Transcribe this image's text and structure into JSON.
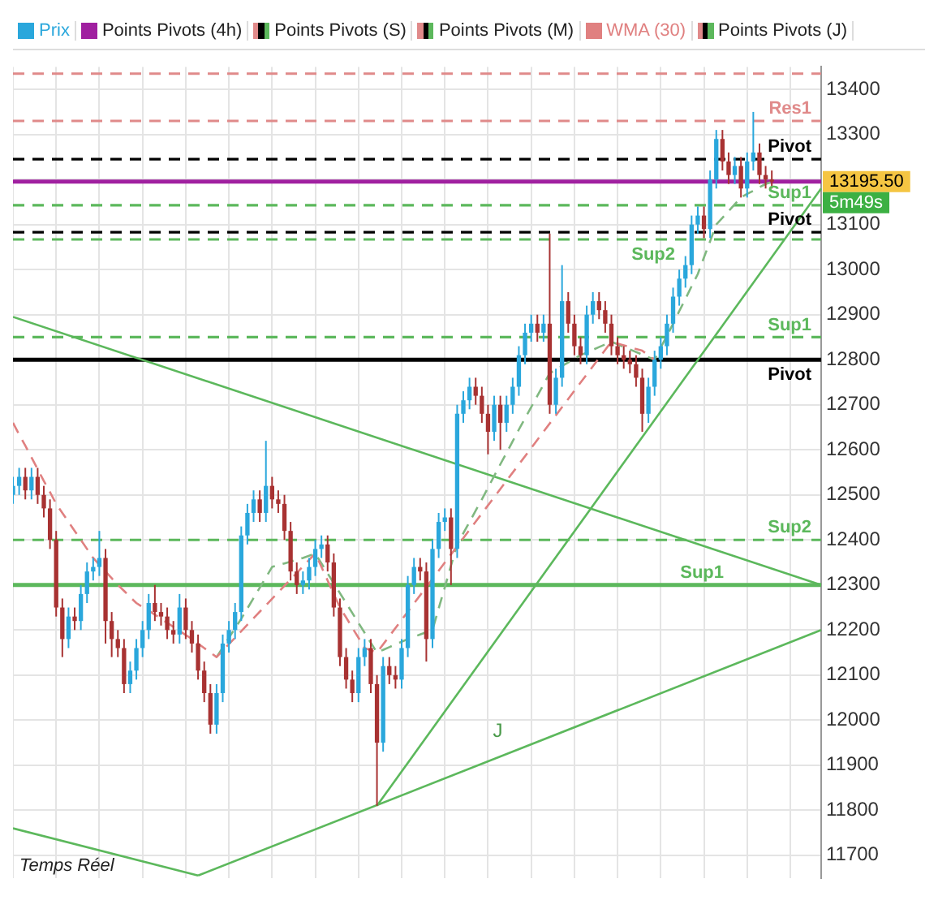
{
  "chart_data": {
    "type": "candlestick",
    "legend": "top left",
    "grid": true,
    "tick_labels": "y",
    "ylim": [
      11650,
      13450
    ],
    "yticks": [
      11700,
      11800,
      11900,
      12000,
      12100,
      12200,
      12300,
      12400,
      12500,
      12600,
      12700,
      12800,
      12900,
      13000,
      13100,
      {
        "value": 13200,
        "label": null
      },
      13300,
      13400
    ],
    "categories": [
      null,
      null,
      null,
      null,
      null,
      null,
      null,
      null,
      null,
      null,
      null,
      null,
      null,
      null,
      null,
      null,
      null,
      null,
      null,
      null,
      null,
      null,
      null,
      null,
      null,
      null,
      null,
      null,
      null,
      null,
      null,
      null,
      null,
      null,
      null,
      null,
      null,
      null,
      null,
      null,
      null,
      null,
      null,
      null,
      null,
      null,
      null,
      null,
      null,
      null,
      null,
      null,
      null,
      null,
      null,
      null,
      null,
      null,
      null,
      null,
      null,
      null,
      null,
      null,
      null,
      null,
      null,
      null,
      null,
      null,
      null,
      null,
      null,
      null,
      null,
      null,
      null,
      null,
      null,
      null,
      null,
      null,
      null,
      null,
      null,
      null,
      null,
      null,
      null,
      null,
      null,
      null,
      null,
      null,
      null,
      null,
      null,
      null,
      null,
      null,
      null,
      null,
      null,
      null,
      null,
      null,
      null,
      null,
      null,
      null,
      null,
      null,
      null,
      null,
      null,
      null,
      null,
      null,
      null,
      null,
      null,
      null,
      null,
      null,
      null,
      null,
      null,
      null,
      null,
      null,
      null,
      null
    ],
    "series": [
      {
        "name": "Prix",
        "ohlc": [
          [
            12500,
            12540,
            12480,
            12520
          ],
          [
            12520,
            12560,
            12500,
            12540
          ],
          [
            12540,
            12560,
            12490,
            12510
          ],
          [
            12510,
            12560,
            12490,
            12540
          ],
          [
            12540,
            12560,
            12480,
            12500
          ],
          [
            12500,
            12520,
            12450,
            12470
          ],
          [
            12470,
            12490,
            12380,
            12400
          ],
          [
            12400,
            12420,
            12230,
            12250
          ],
          [
            12250,
            12270,
            12140,
            12180
          ],
          [
            12180,
            12250,
            12160,
            12230
          ],
          [
            12230,
            12250,
            12200,
            12220
          ],
          [
            12220,
            12300,
            12200,
            12280
          ],
          [
            12280,
            12350,
            12260,
            12330
          ],
          [
            12330,
            12360,
            12310,
            12340
          ],
          [
            12340,
            12420,
            12320,
            12360
          ],
          [
            12360,
            12380,
            12170,
            12220
          ],
          [
            12220,
            12240,
            12140,
            12180
          ],
          [
            12180,
            12200,
            12140,
            12160
          ],
          [
            12160,
            12180,
            12060,
            12080
          ],
          [
            12080,
            12130,
            12060,
            12110
          ],
          [
            12110,
            12180,
            12090,
            12160
          ],
          [
            12160,
            12220,
            12140,
            12200
          ],
          [
            12200,
            12280,
            12180,
            12260
          ],
          [
            12260,
            12300,
            12220,
            12240
          ],
          [
            12240,
            12260,
            12210,
            12230
          ],
          [
            12230,
            12250,
            12180,
            12200
          ],
          [
            12200,
            12220,
            12170,
            12190
          ],
          [
            12190,
            12280,
            12170,
            12250
          ],
          [
            12250,
            12270,
            12180,
            12200
          ],
          [
            12200,
            12220,
            12150,
            12170
          ],
          [
            12170,
            12190,
            12090,
            12110
          ],
          [
            12110,
            12130,
            12040,
            12060
          ],
          [
            12060,
            12080,
            11970,
            11990
          ],
          [
            11990,
            12080,
            11970,
            12060
          ],
          [
            12060,
            12190,
            12040,
            12170
          ],
          [
            12170,
            12220,
            12150,
            12200
          ],
          [
            12200,
            12260,
            12180,
            12240
          ],
          [
            12240,
            12430,
            12220,
            12410
          ],
          [
            12410,
            12480,
            12390,
            12460
          ],
          [
            12460,
            12510,
            12440,
            12490
          ],
          [
            12490,
            12510,
            12440,
            12460
          ],
          [
            12460,
            12620,
            12440,
            12520
          ],
          [
            12520,
            12540,
            12470,
            12490
          ],
          [
            12490,
            12510,
            12460,
            12480
          ],
          [
            12480,
            12500,
            12400,
            12420
          ],
          [
            12420,
            12440,
            12310,
            12330
          ],
          [
            12330,
            12350,
            12280,
            12300
          ],
          [
            12300,
            12330,
            12280,
            12310
          ],
          [
            12310,
            12360,
            12290,
            12340
          ],
          [
            12340,
            12400,
            12320,
            12380
          ],
          [
            12380,
            12410,
            12360,
            12390
          ],
          [
            12390,
            12410,
            12330,
            12350
          ],
          [
            12350,
            12370,
            12230,
            12250
          ],
          [
            12250,
            12270,
            12120,
            12140
          ],
          [
            12140,
            12160,
            12070,
            12090
          ],
          [
            12090,
            12110,
            12040,
            12060
          ],
          [
            12060,
            12160,
            12040,
            12140
          ],
          [
            12140,
            12180,
            12120,
            12160
          ],
          [
            12160,
            12180,
            12060,
            12080
          ],
          [
            12080,
            12100,
            11810,
            11950
          ],
          [
            11950,
            12140,
            11930,
            12120
          ],
          [
            12120,
            12140,
            12080,
            12100
          ],
          [
            12100,
            12120,
            12070,
            12090
          ],
          [
            12090,
            12180,
            12070,
            12160
          ],
          [
            12160,
            12320,
            12140,
            12300
          ],
          [
            12300,
            12360,
            12280,
            12340
          ],
          [
            12340,
            12360,
            12310,
            12330
          ],
          [
            12330,
            12350,
            12130,
            12180
          ],
          [
            12180,
            12400,
            12160,
            12380
          ],
          [
            12380,
            12460,
            12360,
            12440
          ],
          [
            12440,
            12470,
            12420,
            12450
          ],
          [
            12450,
            12470,
            12300,
            12380
          ],
          [
            12380,
            12700,
            12360,
            12680
          ],
          [
            12680,
            12730,
            12660,
            12710
          ],
          [
            12710,
            12760,
            12690,
            12740
          ],
          [
            12740,
            12760,
            12700,
            12720
          ],
          [
            12720,
            12740,
            12660,
            12680
          ],
          [
            12680,
            12700,
            12590,
            12640
          ],
          [
            12640,
            12720,
            12620,
            12700
          ],
          [
            12700,
            12720,
            12600,
            12660
          ],
          [
            12660,
            12720,
            12640,
            12700
          ],
          [
            12700,
            12760,
            12680,
            12740
          ],
          [
            12740,
            12830,
            12720,
            12810
          ],
          [
            12810,
            12880,
            12790,
            12860
          ],
          [
            12860,
            12900,
            12840,
            12880
          ],
          [
            12880,
            12900,
            12840,
            12860
          ],
          [
            12860,
            12900,
            12840,
            12880
          ],
          [
            12880,
            13080,
            12680,
            12700
          ],
          [
            12700,
            12780,
            12680,
            12760
          ],
          [
            12760,
            13010,
            12740,
            12930
          ],
          [
            12930,
            12950,
            12860,
            12880
          ],
          [
            12880,
            12900,
            12810,
            12830
          ],
          [
            12830,
            12850,
            12790,
            12810
          ],
          [
            12810,
            12920,
            12790,
            12900
          ],
          [
            12900,
            12950,
            12880,
            12930
          ],
          [
            12930,
            12950,
            12890,
            12910
          ],
          [
            12910,
            12930,
            12860,
            12880
          ],
          [
            12880,
            12900,
            12810,
            12830
          ],
          [
            12830,
            12850,
            12790,
            12810
          ],
          [
            12810,
            12830,
            12780,
            12800
          ],
          [
            12800,
            12820,
            12770,
            12790
          ],
          [
            12790,
            12810,
            12740,
            12760
          ],
          [
            12760,
            12780,
            12640,
            12680
          ],
          [
            12680,
            12760,
            12660,
            12740
          ],
          [
            12740,
            12820,
            12720,
            12800
          ],
          [
            12800,
            12850,
            12780,
            12830
          ],
          [
            12830,
            12900,
            12810,
            12880
          ],
          [
            12880,
            12960,
            12860,
            12940
          ],
          [
            12940,
            13000,
            12920,
            12980
          ],
          [
            12980,
            13030,
            12960,
            13010
          ],
          [
            13010,
            13120,
            12990,
            13100
          ],
          [
            13100,
            13140,
            13080,
            13120
          ],
          [
            13120,
            13140,
            13070,
            13090
          ],
          [
            13090,
            13220,
            13070,
            13200
          ],
          [
            13200,
            13310,
            13180,
            13290
          ],
          [
            13290,
            13310,
            13220,
            13240
          ],
          [
            13240,
            13260,
            13190,
            13210
          ],
          [
            13210,
            13250,
            13190,
            13230
          ],
          [
            13230,
            13250,
            13160,
            13180
          ],
          [
            13180,
            13260,
            13160,
            13240
          ],
          [
            13240,
            13350,
            13220,
            13260
          ],
          [
            13260,
            13280,
            13190,
            13210
          ],
          [
            13210,
            13230,
            13180,
            13200
          ],
          [
            13200,
            13220,
            13180,
            13195.5
          ],
          null,
          null,
          null,
          null,
          null,
          null,
          null,
          null
        ],
        "colors": [
          "#2aa7dc",
          "#2aa7dc",
          "#a83232",
          "#2aa7dc",
          "#a83232",
          "#a83232",
          "#a83232",
          "#a83232",
          "#a83232",
          "#2aa7dc",
          "#a83232",
          "#2aa7dc",
          "#2aa7dc",
          "#2aa7dc",
          "#2aa7dc",
          "#a83232",
          "#a83232",
          "#a83232",
          "#a83232",
          "#2aa7dc",
          "#2aa7dc",
          "#2aa7dc",
          "#2aa7dc",
          "#a83232",
          "#a83232",
          "#a83232",
          "#a83232",
          "#2aa7dc",
          "#a83232",
          "#a83232",
          "#a83232",
          "#a83232",
          "#a83232",
          "#2aa7dc",
          "#2aa7dc",
          "#2aa7dc",
          "#2aa7dc",
          "#2aa7dc",
          "#2aa7dc",
          "#2aa7dc",
          "#a83232",
          "#2aa7dc",
          "#a83232",
          "#a83232",
          "#a83232",
          "#a83232",
          "#a83232",
          "#2aa7dc",
          "#2aa7dc",
          "#2aa7dc",
          "#2aa7dc",
          "#a83232",
          "#a83232",
          "#a83232",
          "#a83232",
          "#a83232",
          "#2aa7dc",
          "#2aa7dc",
          "#a83232",
          "#a83232",
          "#2aa7dc",
          "#a83232",
          "#a83232",
          "#2aa7dc",
          "#2aa7dc",
          "#2aa7dc",
          "#a83232",
          "#a83232",
          "#2aa7dc",
          "#2aa7dc",
          "#2aa7dc",
          "#a83232",
          "#2aa7dc",
          "#2aa7dc",
          "#2aa7dc",
          "#a83232",
          "#a83232",
          "#a83232",
          "#2aa7dc",
          "#a83232",
          "#2aa7dc",
          "#2aa7dc",
          "#2aa7dc",
          "#2aa7dc",
          "#2aa7dc",
          "#a83232",
          "#2aa7dc",
          "#a83232",
          "#2aa7dc",
          "#2aa7dc",
          "#a83232",
          "#a83232",
          "#a83232",
          "#2aa7dc",
          "#2aa7dc",
          "#a83232",
          "#a83232",
          "#a83232",
          "#a83232",
          "#a83232",
          "#a83232",
          "#a83232",
          "#a83232",
          "#2aa7dc",
          "#2aa7dc",
          "#2aa7dc",
          "#2aa7dc",
          "#2aa7dc",
          "#2aa7dc",
          "#2aa7dc",
          "#2aa7dc",
          "#2aa7dc",
          "#a83232",
          "#2aa7dc",
          "#2aa7dc",
          "#a83232",
          "#a83232",
          "#2aa7dc",
          "#a83232",
          "#2aa7dc",
          "#2aa7dc",
          "#a83232",
          "#a83232",
          "#a83232",
          null,
          null,
          null,
          null,
          null,
          null,
          null,
          null
        ]
      },
      {
        "type": "line",
        "name": "WMA (30)",
        "color": "#e08080",
        "line_style": "dashed",
        "values": [
          12660,
          12634,
          12609,
          12583,
          12557,
          12531,
          12506,
          12480,
          12460,
          12440,
          12420,
          12400,
          12380,
          12360,
          12345,
          12330,
          12315,
          12300,
          12287,
          12273,
          12260,
          12251,
          12243,
          12234,
          12225,
          12216,
          12207,
          12198,
          12189,
          12180,
          12170,
          12160,
          12150,
          12140,
          null,
          null,
          null,
          null,
          null,
          null,
          null,
          null,
          null,
          null,
          null,
          null,
          null,
          null,
          null,
          12370,
          12340,
          12310,
          12280,
          12250,
          12228,
          12205,
          12183,
          12160,
          12155,
          12150,
          null,
          null,
          null,
          null,
          null,
          null,
          null,
          null,
          null,
          null,
          null,
          null,
          null,
          null,
          null,
          null,
          null,
          null,
          null,
          null,
          null,
          null,
          null,
          null,
          null,
          null,
          null,
          null,
          null,
          null,
          null,
          null,
          null,
          null,
          null,
          null,
          null,
          12840,
          12836,
          12832,
          12828,
          12824,
          12820,
          12810,
          12800,
          null,
          null,
          null,
          null,
          null,
          null,
          null,
          null,
          null,
          null,
          null,
          null,
          null,
          null,
          null,
          null,
          null,
          null,
          null,
          null,
          null,
          null,
          null,
          null,
          null,
          null,
          null
        ]
      },
      {
        "type": "line",
        "color": "#80b880",
        "line_style": "dashed",
        "values": [
          null,
          null,
          null,
          null,
          null,
          null,
          null,
          null,
          null,
          null,
          null,
          null,
          null,
          null,
          null,
          null,
          null,
          null,
          null,
          null,
          null,
          null,
          null,
          null,
          null,
          null,
          null,
          null,
          null,
          null,
          null,
          null,
          null,
          12140,
          12161,
          12183,
          12204,
          12225,
          12248,
          12271,
          12294,
          12317,
          12340,
          12344,
          12348,
          12352,
          12356,
          12360,
          12365,
          12370,
          null,
          null,
          null,
          null,
          null,
          null,
          null,
          null,
          null,
          12150,
          12156,
          12162,
          12168,
          12174,
          12180,
          12185,
          12190,
          12195,
          12200,
          12248,
          12295,
          12343,
          12390,
          12415,
          12440,
          12465,
          12490,
          12516,
          12542,
          12568,
          12593,
          12619,
          12645,
          12670,
          12695,
          12720,
          12745,
          12770,
          12778,
          12786,
          12794,
          12802,
          12810,
          12816,
          12822,
          12828,
          12834,
          12840,
          null,
          null,
          null,
          null,
          null,
          null,
          12800,
          12827,
          12853,
          12880,
          12908,
          12935,
          12963,
          12990,
          13027,
          13063,
          13100,
          13115,
          13130,
          13145,
          13160,
          13168,
          13175,
          13183,
          13190,
          13195,
          null,
          null,
          null,
          null,
          null,
          null,
          null,
          null
        ]
      },
      {
        "type": "line",
        "color": "#5cb85c",
        "values": [
          12895,
          null,
          null,
          null,
          null,
          null,
          null,
          null,
          null,
          null,
          null,
          null,
          null,
          null,
          null,
          null,
          null,
          null,
          null,
          null,
          null,
          null,
          null,
          null,
          null,
          null,
          null,
          null,
          null,
          null,
          null,
          null,
          null,
          null,
          null,
          null,
          null,
          null,
          null,
          null,
          null,
          null,
          null,
          null,
          null,
          null,
          null,
          null,
          null,
          null,
          null,
          null,
          null,
          null,
          null,
          null,
          null,
          null,
          null,
          null,
          null,
          null,
          null,
          null,
          null,
          null,
          null,
          null,
          null,
          null,
          null,
          null,
          null,
          null,
          null,
          null,
          null,
          null,
          null,
          null,
          null,
          null,
          null,
          null,
          null,
          null,
          null,
          null,
          null,
          null,
          null,
          null,
          null,
          null,
          null,
          null,
          null,
          null,
          null,
          null,
          null,
          null,
          null,
          null,
          null,
          null,
          null,
          null,
          null,
          null,
          null,
          null,
          null,
          null,
          null,
          null,
          null,
          null,
          null,
          null,
          null,
          null,
          null,
          null,
          null,
          null,
          null,
          null,
          null,
          null,
          null,
          12300
        ]
      },
      {
        "type": "line",
        "color": "#5cb85c",
        "values": [
          null,
          null,
          null,
          null,
          null,
          null,
          null,
          null,
          null,
          null,
          null,
          null,
          null,
          null,
          null,
          null,
          null,
          null,
          null,
          null,
          null,
          null,
          null,
          null,
          null,
          null,
          null,
          null,
          null,
          null,
          null,
          null,
          null,
          null,
          null,
          null,
          null,
          null,
          null,
          null,
          null,
          null,
          null,
          null,
          null,
          null,
          null,
          null,
          null,
          null,
          null,
          null,
          null,
          null,
          null,
          null,
          null,
          null,
          null,
          11810,
          null,
          null,
          null,
          null,
          null,
          null,
          null,
          null,
          null,
          null,
          null,
          null,
          null,
          null,
          null,
          null,
          null,
          null,
          null,
          null,
          null,
          null,
          null,
          null,
          null,
          null,
          null,
          null,
          null,
          null,
          null,
          null,
          null,
          null,
          null,
          null,
          null,
          null,
          null,
          null,
          null,
          null,
          null,
          null,
          null,
          null,
          null,
          null,
          null,
          null,
          null,
          null,
          null,
          null,
          null,
          null,
          null,
          null,
          null,
          null,
          null,
          null,
          null,
          null,
          null,
          null,
          null,
          null,
          null,
          null,
          null,
          13180
        ]
      },
      {
        "type": "line",
        "color": "#5cb85c",
        "values": [
          null,
          null,
          null,
          null,
          null,
          null,
          null,
          null,
          null,
          null,
          null,
          null,
          null,
          null,
          null,
          null,
          null,
          null,
          null,
          null,
          null,
          null,
          null,
          null,
          null,
          null,
          null,
          null,
          null,
          null,
          11655,
          null,
          null,
          null,
          null,
          null,
          null,
          null,
          null,
          null,
          null,
          null,
          null,
          null,
          null,
          null,
          null,
          null,
          null,
          null,
          null,
          null,
          null,
          null,
          null,
          null,
          null,
          null,
          null,
          null,
          null,
          null,
          null,
          null,
          null,
          null,
          null,
          null,
          null,
          null,
          null,
          null,
          null,
          null,
          null,
          null,
          null,
          null,
          null,
          null,
          null,
          null,
          null,
          null,
          null,
          null,
          null,
          null,
          null,
          null,
          null,
          null,
          null,
          null,
          null,
          null,
          null,
          null,
          null,
          null,
          null,
          null,
          null,
          null,
          null,
          null,
          null,
          null,
          null,
          null,
          null,
          null,
          null,
          null,
          null,
          null,
          null,
          null,
          null,
          null,
          null,
          null,
          null,
          null,
          null,
          null,
          null,
          null,
          null,
          null,
          null,
          12200
        ]
      },
      {
        "type": "line",
        "color": "#5cb85c",
        "values": [
          11760,
          null,
          null,
          null,
          null,
          null,
          null,
          null,
          null,
          null,
          null,
          null,
          null,
          null,
          null,
          null,
          null,
          null,
          null,
          null,
          null,
          null,
          null,
          null,
          null,
          null,
          null,
          null,
          null,
          null,
          11655,
          null,
          null,
          null,
          null,
          null,
          null,
          null,
          null,
          null,
          null,
          null,
          null,
          null,
          null,
          null,
          null,
          null,
          null,
          null,
          null,
          null,
          null,
          null,
          null,
          null,
          null,
          null,
          null,
          null,
          null,
          null,
          null,
          null,
          null,
          null,
          null,
          null,
          null,
          null,
          null,
          null,
          null,
          null,
          null,
          null,
          null,
          null,
          null,
          null,
          null,
          null,
          null,
          null,
          null,
          null,
          null,
          null,
          null,
          null,
          null,
          null,
          null,
          null,
          null,
          null,
          null,
          null,
          null,
          null,
          null,
          null,
          null,
          null,
          null,
          null,
          null,
          null,
          null,
          null,
          null,
          null,
          null,
          null,
          null,
          null,
          null,
          null,
          null,
          null,
          null,
          null,
          null,
          null,
          null,
          null,
          null,
          null,
          null,
          null,
          null,
          null
        ]
      }
    ],
    "ref_lines": [
      {
        "axis": "y",
        "value": 13435,
        "color": "#e08a8a",
        "line_style": "dashed"
      },
      {
        "axis": "y",
        "value": 13330,
        "label": "Res1",
        "color": "#e08a8a",
        "line_style": "dashed"
      },
      {
        "axis": "y",
        "value": 13245,
        "label": "Pivot",
        "color": "#000000",
        "line_style": "dashed"
      },
      {
        "axis": "y",
        "value": 13143,
        "label": "Sup1",
        "color": "#5cb85c",
        "line_style": "dashed"
      },
      {
        "axis": "y",
        "value": 13083,
        "label": "Pivot",
        "color": "#000000",
        "line_style": "dashed"
      },
      {
        "axis": "y",
        "value": 13067,
        "label": "Sup2",
        "color": "#5cb85c",
        "line_style": "dashed"
      },
      {
        "axis": "y",
        "value": 12850,
        "label": "Sup1",
        "color": "#5cb85c",
        "line_style": "dashed"
      },
      {
        "axis": "y",
        "value": 12800,
        "label": "Pivot",
        "color": "#000000",
        "line_style": "solid"
      },
      {
        "axis": "y",
        "value": 12400,
        "label": "Sup2",
        "color": "#5cb85c",
        "line_style": "dashed"
      },
      {
        "axis": "y",
        "value": 12300,
        "label": "Sup1",
        "color": "#5cb85c",
        "line_style": "solid"
      },
      {
        "axis": "y",
        "value": 13195.5,
        "color": "#a020a0",
        "line_style": "solid"
      }
    ],
    "annotations": [
      "Points Pivots (4h)",
      "Points Pivots (S)",
      "Points Pivots (M)",
      "Points Pivots (J)",
      "13195.50",
      "5m49s",
      "J",
      "Temps Réel"
    ]
  }
}
